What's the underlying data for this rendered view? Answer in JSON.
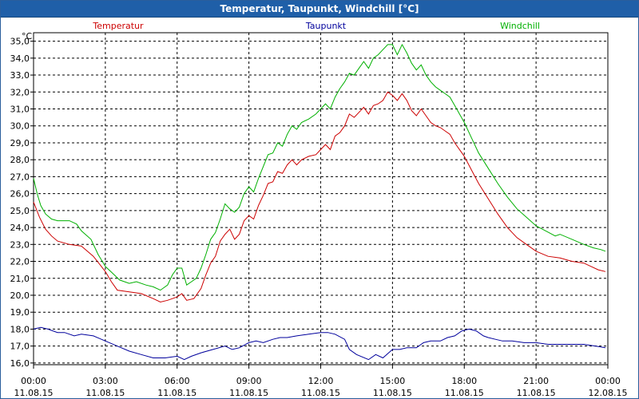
{
  "window": {
    "title": "Temperatur, Taupunkt, Windchill [°C]"
  },
  "chart_data": {
    "type": "line",
    "title": "Temperatur, Taupunkt, Windchill [°C]",
    "ylabel": "°C",
    "xlabel": "",
    "ylim": [
      15.9,
      35.5
    ],
    "xlim": [
      0,
      24
    ],
    "grid": true,
    "y_ticks": [
      "16,0",
      "17,0",
      "18,0",
      "19,0",
      "20,0",
      "21,0",
      "22,0",
      "23,0",
      "24,0",
      "25,0",
      "26,0",
      "27,0",
      "28,0",
      "29,0",
      "30,0",
      "31,0",
      "32,0",
      "33,0",
      "34,0",
      "35,0"
    ],
    "x_ticks": [
      {
        "time": "00:00",
        "date": "11.08.15"
      },
      {
        "time": "03:00",
        "date": "11.08.15"
      },
      {
        "time": "06:00",
        "date": "11.08.15"
      },
      {
        "time": "09:00",
        "date": "11.08.15"
      },
      {
        "time": "12:00",
        "date": "11.08.15"
      },
      {
        "time": "15:00",
        "date": "11.08.15"
      },
      {
        "time": "18:00",
        "date": "11.08.15"
      },
      {
        "time": "21:00",
        "date": "11.08.15"
      },
      {
        "time": "00:00",
        "date": "12.08.15"
      }
    ],
    "series": [
      {
        "name": "Temperatur",
        "color": "#cc0000",
        "points": [
          [
            0,
            25.5
          ],
          [
            0.25,
            24.6
          ],
          [
            0.5,
            23.9
          ],
          [
            0.75,
            23.5
          ],
          [
            1,
            23.2
          ],
          [
            1.5,
            23.0
          ],
          [
            2,
            22.9
          ],
          [
            2.5,
            22.3
          ],
          [
            3,
            21.4
          ],
          [
            3.25,
            20.8
          ],
          [
            3.5,
            20.3
          ],
          [
            4,
            20.2
          ],
          [
            4.5,
            20.1
          ],
          [
            5,
            19.8
          ],
          [
            5.3,
            19.6
          ],
          [
            5.6,
            19.7
          ],
          [
            6,
            19.9
          ],
          [
            6.2,
            20.1
          ],
          [
            6.4,
            19.7
          ],
          [
            6.7,
            19.8
          ],
          [
            7,
            20.4
          ],
          [
            7.2,
            21.2
          ],
          [
            7.4,
            21.9
          ],
          [
            7.6,
            22.3
          ],
          [
            7.8,
            23.2
          ],
          [
            8.0,
            23.6
          ],
          [
            8.2,
            23.9
          ],
          [
            8.4,
            23.3
          ],
          [
            8.6,
            23.6
          ],
          [
            8.8,
            24.4
          ],
          [
            9.0,
            24.7
          ],
          [
            9.2,
            24.5
          ],
          [
            9.4,
            25.3
          ],
          [
            9.6,
            25.9
          ],
          [
            9.8,
            26.6
          ],
          [
            10.0,
            26.7
          ],
          [
            10.2,
            27.3
          ],
          [
            10.4,
            27.2
          ],
          [
            10.6,
            27.7
          ],
          [
            10.8,
            28.0
          ],
          [
            11.0,
            27.7
          ],
          [
            11.2,
            28.0
          ],
          [
            11.5,
            28.2
          ],
          [
            11.8,
            28.3
          ],
          [
            12.0,
            28.6
          ],
          [
            12.2,
            28.9
          ],
          [
            12.4,
            28.6
          ],
          [
            12.6,
            29.4
          ],
          [
            12.8,
            29.6
          ],
          [
            13.0,
            30.0
          ],
          [
            13.2,
            30.7
          ],
          [
            13.4,
            30.5
          ],
          [
            13.6,
            30.8
          ],
          [
            13.8,
            31.1
          ],
          [
            14.0,
            30.7
          ],
          [
            14.2,
            31.2
          ],
          [
            14.4,
            31.3
          ],
          [
            14.6,
            31.5
          ],
          [
            14.8,
            32.0
          ],
          [
            15.0,
            31.8
          ],
          [
            15.2,
            31.5
          ],
          [
            15.4,
            31.9
          ],
          [
            15.6,
            31.5
          ],
          [
            15.8,
            30.9
          ],
          [
            16.0,
            30.6
          ],
          [
            16.2,
            31.0
          ],
          [
            16.4,
            30.6
          ],
          [
            16.6,
            30.2
          ],
          [
            16.8,
            30.0
          ],
          [
            17.0,
            29.9
          ],
          [
            17.2,
            29.7
          ],
          [
            17.4,
            29.5
          ],
          [
            17.6,
            29.0
          ],
          [
            17.8,
            28.6
          ],
          [
            18.0,
            28.2
          ],
          [
            18.3,
            27.4
          ],
          [
            18.6,
            26.6
          ],
          [
            19.0,
            25.7
          ],
          [
            19.4,
            24.8
          ],
          [
            19.8,
            24.0
          ],
          [
            20.2,
            23.4
          ],
          [
            20.6,
            23.0
          ],
          [
            21.0,
            22.6
          ],
          [
            21.5,
            22.3
          ],
          [
            22.0,
            22.2
          ],
          [
            22.5,
            22.0
          ],
          [
            23.0,
            21.9
          ],
          [
            23.3,
            21.7
          ],
          [
            23.6,
            21.5
          ],
          [
            23.9,
            21.4
          ]
        ]
      },
      {
        "name": "Taupunkt",
        "color": "#00009c",
        "points": [
          [
            0,
            18.0
          ],
          [
            0.3,
            18.1
          ],
          [
            0.6,
            18.0
          ],
          [
            1.0,
            17.8
          ],
          [
            1.3,
            17.8
          ],
          [
            1.7,
            17.6
          ],
          [
            2.0,
            17.7
          ],
          [
            2.5,
            17.6
          ],
          [
            3.0,
            17.3
          ],
          [
            3.5,
            17.0
          ],
          [
            4.0,
            16.7
          ],
          [
            4.5,
            16.5
          ],
          [
            5.0,
            16.3
          ],
          [
            5.5,
            16.3
          ],
          [
            6.0,
            16.4
          ],
          [
            6.3,
            16.2
          ],
          [
            6.6,
            16.4
          ],
          [
            7.0,
            16.6
          ],
          [
            7.5,
            16.8
          ],
          [
            8.0,
            17.0
          ],
          [
            8.3,
            16.8
          ],
          [
            8.6,
            16.9
          ],
          [
            9.0,
            17.2
          ],
          [
            9.3,
            17.3
          ],
          [
            9.6,
            17.2
          ],
          [
            10.0,
            17.4
          ],
          [
            10.3,
            17.5
          ],
          [
            10.6,
            17.5
          ],
          [
            11.0,
            17.6
          ],
          [
            11.5,
            17.7
          ],
          [
            12.0,
            17.8
          ],
          [
            12.3,
            17.8
          ],
          [
            12.6,
            17.7
          ],
          [
            13.0,
            17.4
          ],
          [
            13.2,
            16.8
          ],
          [
            13.5,
            16.5
          ],
          [
            14.0,
            16.2
          ],
          [
            14.3,
            16.5
          ],
          [
            14.6,
            16.3
          ],
          [
            15.0,
            16.8
          ],
          [
            15.3,
            16.8
          ],
          [
            15.6,
            16.9
          ],
          [
            16.0,
            16.9
          ],
          [
            16.3,
            17.2
          ],
          [
            16.6,
            17.3
          ],
          [
            17.0,
            17.3
          ],
          [
            17.3,
            17.5
          ],
          [
            17.6,
            17.6
          ],
          [
            17.9,
            17.9
          ],
          [
            18.2,
            18.0
          ],
          [
            18.5,
            17.9
          ],
          [
            18.8,
            17.6
          ],
          [
            19.0,
            17.5
          ],
          [
            19.3,
            17.4
          ],
          [
            19.6,
            17.3
          ],
          [
            20.0,
            17.3
          ],
          [
            20.5,
            17.2
          ],
          [
            21.0,
            17.2
          ],
          [
            21.5,
            17.1
          ],
          [
            22.0,
            17.1
          ],
          [
            22.5,
            17.1
          ],
          [
            23.0,
            17.1
          ],
          [
            23.5,
            17.0
          ],
          [
            23.9,
            16.9
          ]
        ]
      },
      {
        "name": "Windchill",
        "color": "#00b000",
        "points": [
          [
            0,
            26.9
          ],
          [
            0.15,
            26.0
          ],
          [
            0.3,
            25.3
          ],
          [
            0.5,
            24.8
          ],
          [
            0.75,
            24.5
          ],
          [
            1.0,
            24.4
          ],
          [
            1.5,
            24.4
          ],
          [
            1.8,
            24.2
          ],
          [
            2.0,
            23.8
          ],
          [
            2.4,
            23.3
          ],
          [
            2.7,
            22.4
          ],
          [
            3.0,
            21.7
          ],
          [
            3.3,
            21.3
          ],
          [
            3.6,
            20.9
          ],
          [
            4.0,
            20.7
          ],
          [
            4.3,
            20.8
          ],
          [
            4.7,
            20.6
          ],
          [
            5.0,
            20.5
          ],
          [
            5.3,
            20.3
          ],
          [
            5.6,
            20.6
          ],
          [
            5.8,
            21.2
          ],
          [
            6.0,
            21.6
          ],
          [
            6.2,
            21.6
          ],
          [
            6.4,
            20.6
          ],
          [
            6.6,
            20.8
          ],
          [
            6.8,
            21.0
          ],
          [
            7.0,
            21.6
          ],
          [
            7.2,
            22.4
          ],
          [
            7.4,
            23.3
          ],
          [
            7.6,
            23.7
          ],
          [
            7.8,
            24.5
          ],
          [
            8.0,
            25.4
          ],
          [
            8.2,
            25.1
          ],
          [
            8.4,
            24.9
          ],
          [
            8.6,
            25.2
          ],
          [
            8.8,
            26.0
          ],
          [
            9.0,
            26.4
          ],
          [
            9.2,
            26.1
          ],
          [
            9.4,
            26.9
          ],
          [
            9.6,
            27.6
          ],
          [
            9.8,
            28.3
          ],
          [
            10.0,
            28.4
          ],
          [
            10.2,
            29.0
          ],
          [
            10.4,
            28.8
          ],
          [
            10.6,
            29.5
          ],
          [
            10.8,
            30.0
          ],
          [
            11.0,
            29.8
          ],
          [
            11.2,
            30.2
          ],
          [
            11.5,
            30.4
          ],
          [
            11.8,
            30.7
          ],
          [
            12.0,
            31.0
          ],
          [
            12.2,
            31.3
          ],
          [
            12.4,
            31.0
          ],
          [
            12.6,
            31.7
          ],
          [
            12.8,
            32.2
          ],
          [
            13.0,
            32.6
          ],
          [
            13.2,
            33.1
          ],
          [
            13.4,
            33.0
          ],
          [
            13.6,
            33.4
          ],
          [
            13.8,
            33.8
          ],
          [
            14.0,
            33.4
          ],
          [
            14.2,
            34.0
          ],
          [
            14.4,
            34.2
          ],
          [
            14.6,
            34.5
          ],
          [
            14.8,
            34.8
          ],
          [
            15.0,
            34.8
          ],
          [
            15.2,
            34.2
          ],
          [
            15.4,
            34.8
          ],
          [
            15.6,
            34.3
          ],
          [
            15.8,
            33.7
          ],
          [
            16.0,
            33.3
          ],
          [
            16.2,
            33.6
          ],
          [
            16.4,
            33.0
          ],
          [
            16.6,
            32.6
          ],
          [
            16.8,
            32.3
          ],
          [
            17.0,
            32.1
          ],
          [
            17.2,
            31.9
          ],
          [
            17.4,
            31.7
          ],
          [
            17.6,
            31.2
          ],
          [
            17.8,
            30.7
          ],
          [
            18.0,
            30.2
          ],
          [
            18.3,
            29.3
          ],
          [
            18.6,
            28.4
          ],
          [
            19.0,
            27.5
          ],
          [
            19.4,
            26.6
          ],
          [
            19.8,
            25.8
          ],
          [
            20.2,
            25.1
          ],
          [
            20.6,
            24.6
          ],
          [
            21.0,
            24.1
          ],
          [
            21.4,
            23.8
          ],
          [
            21.8,
            23.5
          ],
          [
            22.0,
            23.6
          ],
          [
            22.5,
            23.3
          ],
          [
            23.0,
            23.0
          ],
          [
            23.4,
            22.8
          ],
          [
            23.7,
            22.7
          ],
          [
            23.9,
            22.6
          ]
        ]
      }
    ]
  }
}
